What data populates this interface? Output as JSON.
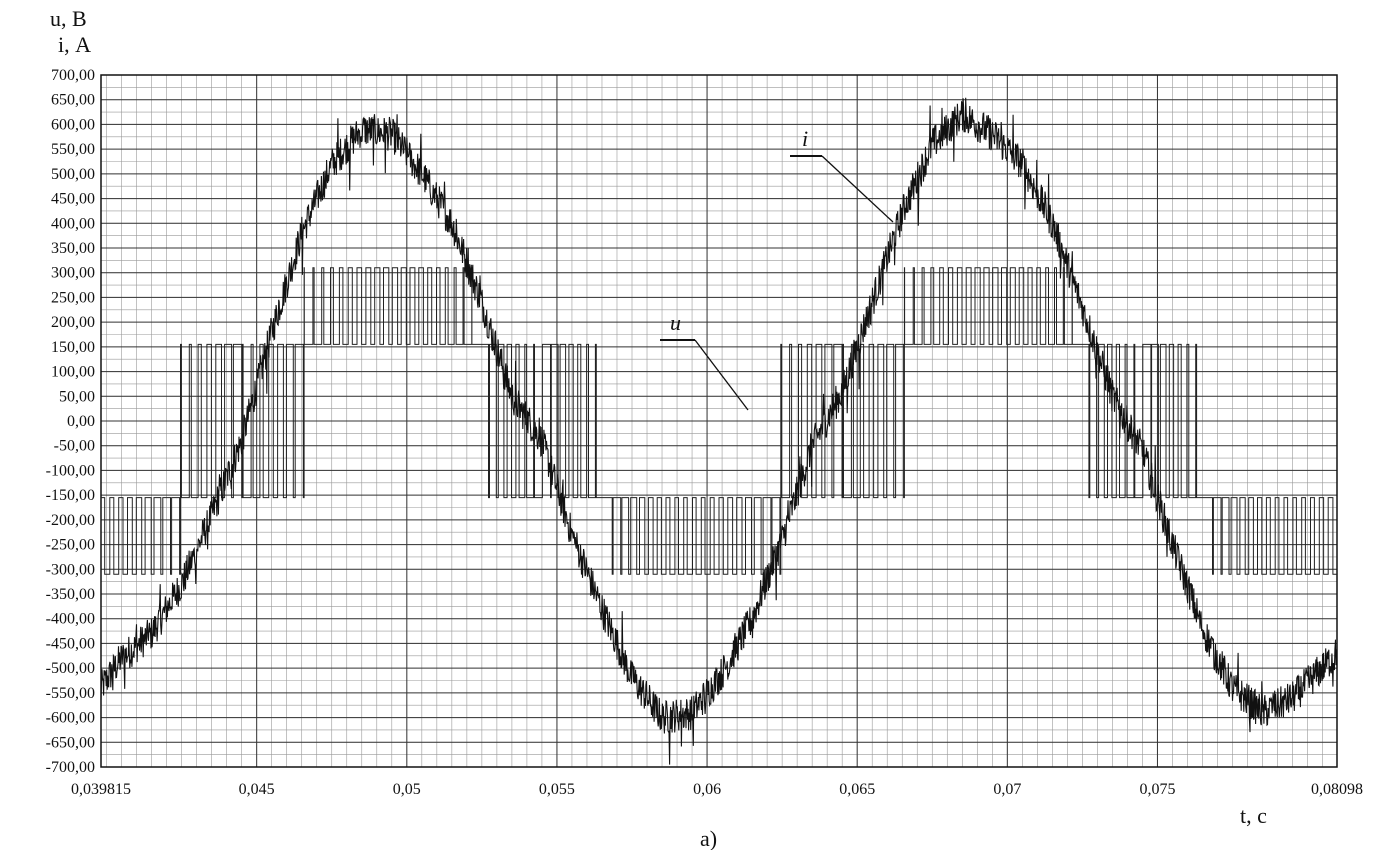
{
  "chart_data": {
    "type": "line",
    "y_axis_label_voltage": "u, В",
    "y_axis_label_current": "i, А",
    "x_axis_label": "t, с",
    "caption": "а)",
    "ylim": [
      -700,
      700
    ],
    "xlim": [
      0.039815,
      0.08098
    ],
    "y_ticks": [
      "700,00",
      "650,00",
      "600,00",
      "550,00",
      "500,00",
      "450,00",
      "400,00",
      "350,00",
      "300,00",
      "250,00",
      "200,00",
      "150,00",
      "100,00",
      "50,00",
      "0,00",
      "-50,00",
      "-100,00",
      "-150,00",
      "-200,00",
      "-250,00",
      "-300,00",
      "-350,00",
      "-400,00",
      "-450,00",
      "-500,00",
      "-550,00",
      "-600,00",
      "-650,00",
      "-700,00"
    ],
    "x_ticks": [
      {
        "value": 0.039815,
        "label": "0,039815"
      },
      {
        "value": 0.045,
        "label": "0,045"
      },
      {
        "value": 0.05,
        "label": "0,05"
      },
      {
        "value": 0.055,
        "label": "0,055"
      },
      {
        "value": 0.06,
        "label": "0,06"
      },
      {
        "value": 0.065,
        "label": "0,065"
      },
      {
        "value": 0.07,
        "label": "0,07"
      },
      {
        "value": 0.075,
        "label": "0,075"
      },
      {
        "value": 0.08098,
        "label": "0,08098"
      }
    ],
    "grid": true,
    "series": [
      {
        "name": "i",
        "description_values": "sinusoidal current with high-frequency ripple",
        "x": [
          0.039815,
          0.0405,
          0.0415,
          0.0425,
          0.0435,
          0.0445,
          0.0455,
          0.0465,
          0.0475,
          0.0485,
          0.0495,
          0.0505,
          0.0515,
          0.0525,
          0.0535,
          0.0545,
          0.0555,
          0.0565,
          0.0575,
          0.0585,
          0.0595,
          0.0605,
          0.0615,
          0.0625,
          0.0635,
          0.0645,
          0.0655,
          0.0665,
          0.0675,
          0.0685,
          0.0695,
          0.0705,
          0.0715,
          0.0725,
          0.0735,
          0.0745,
          0.0755,
          0.0765,
          0.0775,
          0.0785,
          0.0795,
          0.08098
        ],
        "values": [
          -540,
          -480,
          -430,
          -330,
          -190,
          -40,
          180,
          380,
          520,
          590,
          580,
          500,
          400,
          240,
          50,
          -40,
          -230,
          -380,
          -520,
          -600,
          -590,
          -510,
          -400,
          -240,
          -50,
          60,
          240,
          420,
          560,
          620,
          580,
          520,
          400,
          230,
          50,
          -60,
          -250,
          -420,
          -540,
          -590,
          -560,
          -470
        ]
      },
      {
        "name": "u",
        "description_values": "PWM multilevel voltage, levels ±155 and ±310 V",
        "levels": [
          -310,
          -155,
          0,
          155,
          310
        ]
      }
    ],
    "annotations": [
      "i",
      "u"
    ]
  }
}
